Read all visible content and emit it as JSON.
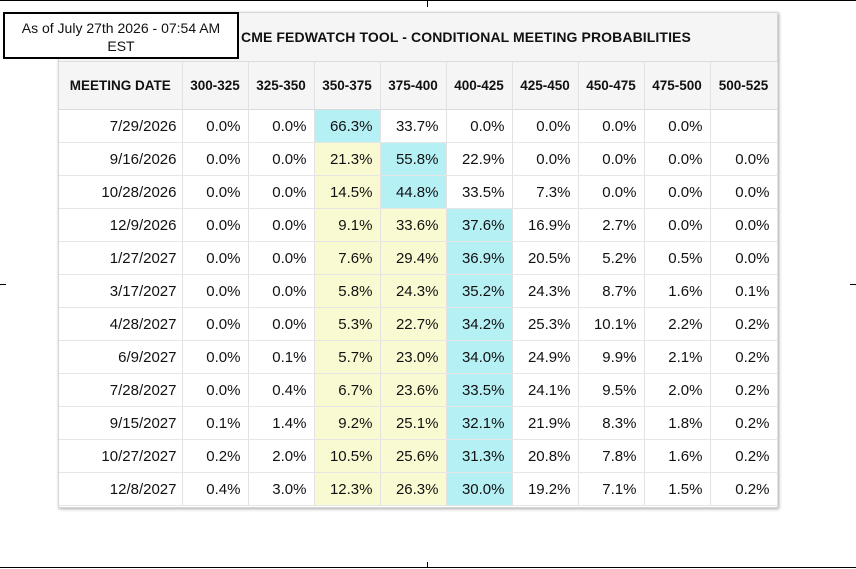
{
  "timestamp": {
    "line1": "As of July 27th 2026 - 07:54 AM",
    "line2": "EST"
  },
  "title": "CME FEDWATCH TOOL - CONDITIONAL MEETING PROBABILITIES",
  "columns": [
    "MEETING DATE",
    "300-325",
    "325-350",
    "350-375",
    "375-400",
    "400-425",
    "425-450",
    "450-475",
    "475-500",
    "500-525"
  ],
  "colors": {
    "highlight_yellow": "#fafad2",
    "highlight_cyan": "#b5f0f5",
    "header_bg": "#f5f5f5"
  },
  "rows": [
    {
      "date": "7/29/2026",
      "values": [
        "0.0%",
        "0.0%",
        "66.3%",
        "33.7%",
        "0.0%",
        "0.0%",
        "0.0%",
        "0.0%",
        ""
      ],
      "highlight": [
        "",
        "",
        "cyan",
        "",
        "",
        "",
        "",
        "",
        ""
      ]
    },
    {
      "date": "9/16/2026",
      "values": [
        "0.0%",
        "0.0%",
        "21.3%",
        "55.8%",
        "22.9%",
        "0.0%",
        "0.0%",
        "0.0%",
        "0.0%"
      ],
      "highlight": [
        "",
        "",
        "yellow",
        "cyan",
        "",
        "",
        "",
        "",
        ""
      ]
    },
    {
      "date": "10/28/2026",
      "values": [
        "0.0%",
        "0.0%",
        "14.5%",
        "44.8%",
        "33.5%",
        "7.3%",
        "0.0%",
        "0.0%",
        "0.0%"
      ],
      "highlight": [
        "",
        "",
        "yellow",
        "cyan",
        "",
        "",
        "",
        "",
        ""
      ]
    },
    {
      "date": "12/9/2026",
      "values": [
        "0.0%",
        "0.0%",
        "9.1%",
        "33.6%",
        "37.6%",
        "16.9%",
        "2.7%",
        "0.0%",
        "0.0%"
      ],
      "highlight": [
        "",
        "",
        "yellow",
        "yellow",
        "cyan",
        "",
        "",
        "",
        ""
      ]
    },
    {
      "date": "1/27/2027",
      "values": [
        "0.0%",
        "0.0%",
        "7.6%",
        "29.4%",
        "36.9%",
        "20.5%",
        "5.2%",
        "0.5%",
        "0.0%"
      ],
      "highlight": [
        "",
        "",
        "yellow",
        "yellow",
        "cyan",
        "",
        "",
        "",
        ""
      ]
    },
    {
      "date": "3/17/2027",
      "values": [
        "0.0%",
        "0.0%",
        "5.8%",
        "24.3%",
        "35.2%",
        "24.3%",
        "8.7%",
        "1.6%",
        "0.1%"
      ],
      "highlight": [
        "",
        "",
        "yellow",
        "yellow",
        "cyan",
        "",
        "",
        "",
        ""
      ]
    },
    {
      "date": "4/28/2027",
      "values": [
        "0.0%",
        "0.0%",
        "5.3%",
        "22.7%",
        "34.2%",
        "25.3%",
        "10.1%",
        "2.2%",
        "0.2%"
      ],
      "highlight": [
        "",
        "",
        "yellow",
        "yellow",
        "cyan",
        "",
        "",
        "",
        ""
      ]
    },
    {
      "date": "6/9/2027",
      "values": [
        "0.0%",
        "0.1%",
        "5.7%",
        "23.0%",
        "34.0%",
        "24.9%",
        "9.9%",
        "2.1%",
        "0.2%"
      ],
      "highlight": [
        "",
        "",
        "yellow",
        "yellow",
        "cyan",
        "",
        "",
        "",
        ""
      ]
    },
    {
      "date": "7/28/2027",
      "values": [
        "0.0%",
        "0.4%",
        "6.7%",
        "23.6%",
        "33.5%",
        "24.1%",
        "9.5%",
        "2.0%",
        "0.2%"
      ],
      "highlight": [
        "",
        "",
        "yellow",
        "yellow",
        "cyan",
        "",
        "",
        "",
        ""
      ]
    },
    {
      "date": "9/15/2027",
      "values": [
        "0.1%",
        "1.4%",
        "9.2%",
        "25.1%",
        "32.1%",
        "21.9%",
        "8.3%",
        "1.8%",
        "0.2%"
      ],
      "highlight": [
        "",
        "",
        "yellow",
        "yellow",
        "cyan",
        "",
        "",
        "",
        ""
      ]
    },
    {
      "date": "10/27/2027",
      "values": [
        "0.2%",
        "2.0%",
        "10.5%",
        "25.6%",
        "31.3%",
        "20.8%",
        "7.8%",
        "1.6%",
        "0.2%"
      ],
      "highlight": [
        "",
        "",
        "yellow",
        "yellow",
        "cyan",
        "",
        "",
        "",
        ""
      ]
    },
    {
      "date": "12/8/2027",
      "values": [
        "0.4%",
        "3.0%",
        "12.3%",
        "26.3%",
        "30.0%",
        "19.2%",
        "7.1%",
        "1.5%",
        "0.2%"
      ],
      "highlight": [
        "",
        "",
        "yellow",
        "yellow",
        "cyan",
        "",
        "",
        "",
        ""
      ]
    }
  ]
}
